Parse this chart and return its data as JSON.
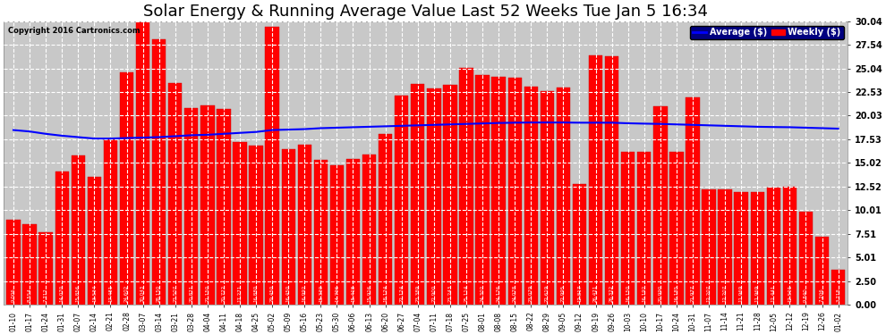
{
  "title": "Solar Energy & Running Average Value Last 52 Weeks Tue Jan 5 16:34",
  "copyright": "Copyright 2016 Cartronics.com",
  "categories": [
    "01-10",
    "01-17",
    "01-24",
    "01-31",
    "02-07",
    "02-14",
    "02-21",
    "02-28",
    "03-07",
    "03-14",
    "03-21",
    "03-28",
    "04-04",
    "04-11",
    "04-18",
    "04-25",
    "05-02",
    "05-09",
    "05-16",
    "05-23",
    "05-30",
    "06-06",
    "06-13",
    "06-20",
    "06-27",
    "07-04",
    "07-11",
    "07-18",
    "07-25",
    "08-01",
    "08-08",
    "08-15",
    "08-22",
    "08-29",
    "09-05",
    "09-12",
    "09-19",
    "09-26",
    "10-03",
    "10-10",
    "10-17",
    "10-24",
    "10-31",
    "11-07",
    "11-14",
    "11-21",
    "11-28",
    "12-05",
    "12-12",
    "12-19",
    "12-26",
    "01-02"
  ],
  "values": [
    9.006,
    8.554,
    7.712,
    14.07,
    15.856,
    13.534,
    17.481,
    24.602,
    30.043,
    28.15,
    23.507,
    20.821,
    21.15,
    20.722,
    17.271,
    16.88,
    29.45,
    16.45,
    16.992,
    15.339,
    14.796,
    15.418,
    15.916,
    18.124,
    22.124,
    23.389,
    22.9,
    23.243,
    25.114,
    24.302,
    24.176,
    24.078,
    23.079,
    22.619,
    22.995,
    12.817,
    26.421,
    26.322,
    16.15,
    16.192,
    20.99,
    16.185,
    21.977,
    12.207,
    12.207,
    11.969,
    11.969,
    12.441,
    12.501,
    9.84,
    7.206,
    3.718
  ],
  "running_avg": [
    18.5,
    18.35,
    18.1,
    17.9,
    17.75,
    17.6,
    17.6,
    17.65,
    17.7,
    17.75,
    17.85,
    17.95,
    18.0,
    18.1,
    18.2,
    18.3,
    18.5,
    18.55,
    18.6,
    18.7,
    18.75,
    18.8,
    18.85,
    18.9,
    18.95,
    19.0,
    19.05,
    19.1,
    19.15,
    19.2,
    19.25,
    19.28,
    19.3,
    19.3,
    19.3,
    19.28,
    19.28,
    19.28,
    19.22,
    19.18,
    19.15,
    19.1,
    19.05,
    19.0,
    18.95,
    18.9,
    18.85,
    18.82,
    18.8,
    18.75,
    18.7,
    18.65
  ],
  "bar_color": "#ff0000",
  "bar_edge_color": "#cc0000",
  "line_color": "#0000ff",
  "plot_bg_color": "#c8c8c8",
  "fig_bg_color": "#ffffff",
  "grid_color": "#ffffff",
  "yticks": [
    0.0,
    2.5,
    5.01,
    7.51,
    10.01,
    12.52,
    15.02,
    17.53,
    20.03,
    22.53,
    25.04,
    27.54,
    30.04
  ],
  "ylim": [
    0,
    30.04
  ],
  "title_fontsize": 13,
  "label_fontsize": 5.5,
  "tick_fontsize": 7,
  "legend_labels": [
    "Average ($)",
    "Weekly ($)"
  ],
  "legend_bg_color": "#000080",
  "line_legend_color": "#0000ff",
  "bar_legend_color": "#ff0000"
}
